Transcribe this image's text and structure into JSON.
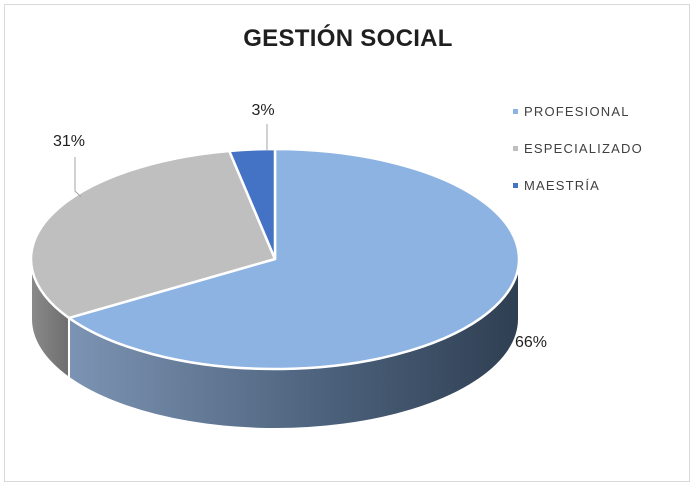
{
  "chart_data": {
    "type": "pie",
    "title": "GESTIÓN SOCIAL",
    "categories": [
      "PROFESIONAL",
      "ESPECIALIZADO",
      "MAESTRÍA"
    ],
    "values": [
      66,
      31,
      3
    ],
    "data_labels": [
      "66%",
      "31%",
      "3%"
    ],
    "colors": [
      "#8db3e2",
      "#bfbfbf",
      "#4472c4"
    ],
    "legend_position": "right",
    "style": "3d"
  }
}
